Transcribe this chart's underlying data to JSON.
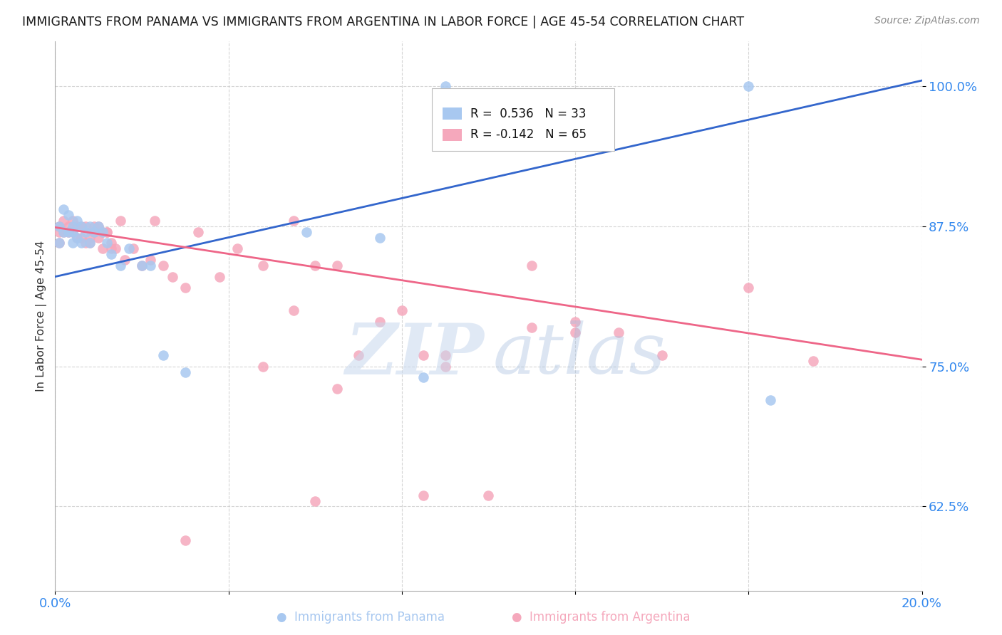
{
  "title": "IMMIGRANTS FROM PANAMA VS IMMIGRANTS FROM ARGENTINA IN LABOR FORCE | AGE 45-54 CORRELATION CHART",
  "source": "Source: ZipAtlas.com",
  "ylabel": "In Labor Force | Age 45-54",
  "xlim": [
    0.0,
    0.2
  ],
  "ylim": [
    0.55,
    1.04
  ],
  "xticks": [
    0.0,
    0.04,
    0.08,
    0.12,
    0.16,
    0.2
  ],
  "xticklabels": [
    "0.0%",
    "",
    "",
    "",
    "",
    "20.0%"
  ],
  "yticks": [
    0.625,
    0.75,
    0.875,
    1.0
  ],
  "yticklabels": [
    "62.5%",
    "75.0%",
    "87.5%",
    "100.0%"
  ],
  "panama_color": "#a8c8f0",
  "argentina_color": "#f5a8bc",
  "panama_line_color": "#3366cc",
  "argentina_line_color": "#ee6688",
  "legend_r_panama": "R =  0.536",
  "legend_n_panama": "N = 33",
  "legend_r_argentina": "R = -0.142",
  "legend_n_argentina": "N = 65",
  "panama_line_x0": 0.0,
  "panama_line_y0": 0.83,
  "panama_line_x1": 0.2,
  "panama_line_y1": 1.005,
  "argentina_line_x0": 0.0,
  "argentina_line_y0": 0.874,
  "argentina_line_x1": 0.2,
  "argentina_line_y1": 0.756,
  "panama_x": [
    0.001,
    0.001,
    0.002,
    0.002,
    0.003,
    0.003,
    0.004,
    0.004,
    0.004,
    0.005,
    0.005,
    0.006,
    0.006,
    0.007,
    0.008,
    0.008,
    0.009,
    0.01,
    0.011,
    0.012,
    0.013,
    0.015,
    0.017,
    0.02,
    0.022,
    0.025,
    0.03,
    0.085,
    0.09,
    0.16,
    0.165,
    0.058,
    0.075
  ],
  "panama_y": [
    0.875,
    0.86,
    0.89,
    0.87,
    0.885,
    0.87,
    0.875,
    0.87,
    0.86,
    0.88,
    0.865,
    0.875,
    0.86,
    0.87,
    0.875,
    0.86,
    0.87,
    0.875,
    0.87,
    0.86,
    0.85,
    0.84,
    0.855,
    0.84,
    0.84,
    0.76,
    0.745,
    0.74,
    1.0,
    1.0,
    0.72,
    0.87,
    0.865
  ],
  "argentina_x": [
    0.001,
    0.001,
    0.001,
    0.002,
    0.002,
    0.003,
    0.003,
    0.004,
    0.004,
    0.005,
    0.005,
    0.006,
    0.006,
    0.007,
    0.007,
    0.008,
    0.008,
    0.009,
    0.009,
    0.01,
    0.01,
    0.011,
    0.011,
    0.012,
    0.012,
    0.013,
    0.013,
    0.014,
    0.015,
    0.016,
    0.018,
    0.02,
    0.022,
    0.023,
    0.025,
    0.027,
    0.03,
    0.033,
    0.038,
    0.042,
    0.048,
    0.055,
    0.06,
    0.065,
    0.07,
    0.075,
    0.08,
    0.085,
    0.09,
    0.1,
    0.11,
    0.12,
    0.13,
    0.14,
    0.16,
    0.175,
    0.048,
    0.055,
    0.065,
    0.09,
    0.11,
    0.12,
    0.085,
    0.06,
    0.03
  ],
  "argentina_y": [
    0.875,
    0.87,
    0.86,
    0.88,
    0.87,
    0.875,
    0.87,
    0.88,
    0.87,
    0.875,
    0.865,
    0.865,
    0.875,
    0.86,
    0.875,
    0.865,
    0.86,
    0.875,
    0.87,
    0.875,
    0.865,
    0.87,
    0.855,
    0.87,
    0.87,
    0.86,
    0.855,
    0.855,
    0.88,
    0.845,
    0.855,
    0.84,
    0.845,
    0.88,
    0.84,
    0.83,
    0.82,
    0.87,
    0.83,
    0.855,
    0.84,
    0.88,
    0.84,
    0.84,
    0.76,
    0.79,
    0.8,
    0.76,
    0.76,
    0.635,
    0.84,
    0.79,
    0.78,
    0.76,
    0.82,
    0.755,
    0.75,
    0.8,
    0.73,
    0.75,
    0.785,
    0.78,
    0.635,
    0.63,
    0.595
  ]
}
